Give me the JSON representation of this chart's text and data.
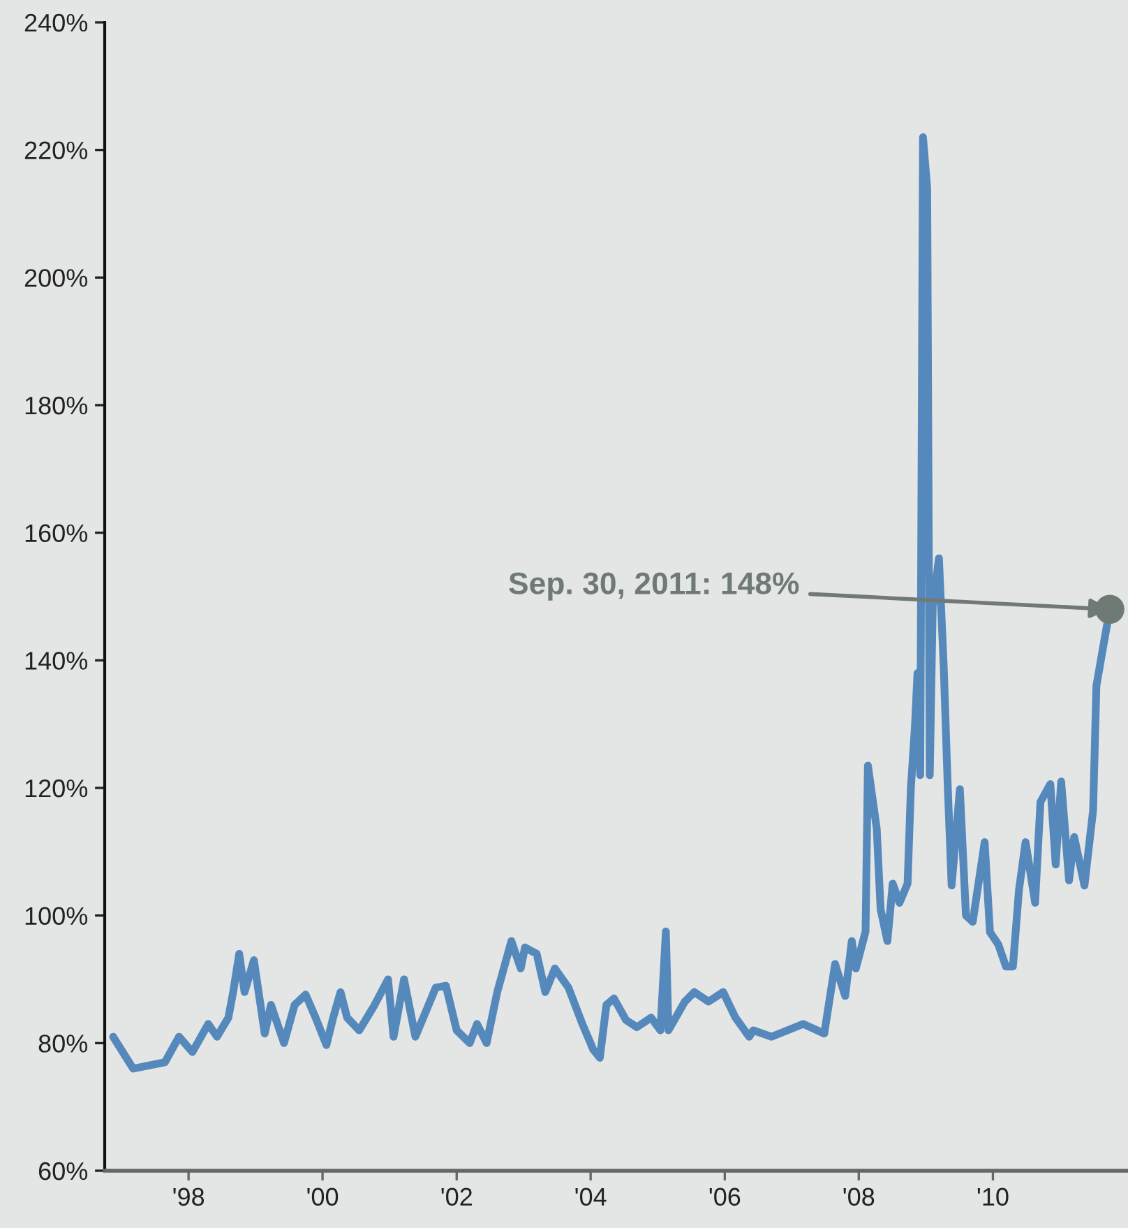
{
  "chart_data": {
    "type": "line",
    "x": [
      "1996-11-16",
      "1997-03-05",
      "1997-08-25",
      "1997-11-10",
      "1998-01-22",
      "1998-04-18",
      "1998-06-05",
      "1998-08-06",
      "1998-09-01",
      "1998-10-04",
      "1998-11-02",
      "1998-12-23",
      "1999-02-20",
      "1999-03-26",
      "1999-06-05",
      "1999-08-02",
      "1999-10-01",
      "1999-11-24",
      "2000-01-22",
      "2000-02-28",
      "2000-04-08",
      "2000-05-14",
      "2000-07-19",
      "2000-10-11",
      "2000-12-23",
      "2001-01-22",
      "2001-03-20",
      "2001-05-21",
      "2001-09-09",
      "2001-11-03",
      "2002-01-01",
      "2002-03-13",
      "2002-04-22",
      "2002-06-13",
      "2002-08-10",
      "2002-10-26",
      "2002-12-16",
      "2003-01-08",
      "2003-03-13",
      "2003-04-29",
      "2003-06-20",
      "2003-09-02",
      "2003-11-17",
      "2004-01-15",
      "2004-02-20",
      "2004-03-27",
      "2004-05-07",
      "2004-07-12",
      "2004-09-09",
      "2004-11-25",
      "2005-01-15",
      "2005-02-14",
      "2005-02-28",
      "2005-05-28",
      "2005-07-19",
      "2005-10-04",
      "2005-12-23",
      "2006-02-28",
      "2006-05-14",
      "2006-06-05",
      "2006-09-13",
      "2007-03-05",
      "2007-06-27",
      "2007-08-25",
      "2007-10-19",
      "2007-11-24",
      "2007-12-16",
      "2008-02-07",
      "2008-02-20",
      "2008-04-08",
      "2008-04-29",
      "2008-06-05",
      "2008-07-04",
      "2008-08-10",
      "2008-09-23",
      "2008-10-11",
      "2008-11-02",
      "2008-11-16",
      "2008-12-01",
      "2008-12-16",
      "2009-01-08",
      "2009-01-22",
      "2009-02-07",
      "2009-03-13",
      "2009-04-08",
      "2009-04-29",
      "2009-05-21",
      "2009-07-05",
      "2009-08-07",
      "2009-09-13",
      "2009-11-17",
      "2009-12-16",
      "2010-01-30",
      "2010-03-13",
      "2010-04-20",
      "2010-05-23",
      "2010-06-28",
      "2010-08-19",
      "2010-09-17",
      "2010-11-10",
      "2010-12-09",
      "2011-01-08",
      "2011-02-20",
      "2011-03-20",
      "2011-05-15",
      "2011-07-01",
      "2011-07-19",
      "2011-08-18",
      "2011-09-30"
    ],
    "series": [
      {
        "color": "#5689bb",
        "values": [
          81,
          76,
          77,
          81,
          78.6,
          83,
          81,
          84,
          88,
          94,
          88,
          93,
          81.5,
          86,
          80,
          86,
          87.6,
          84,
          79.7,
          84,
          88,
          84,
          82,
          86,
          90,
          81,
          90,
          81,
          88.7,
          89,
          82,
          80,
          83,
          80,
          88,
          96,
          91.7,
          95,
          94,
          88,
          91.7,
          88.7,
          83,
          79,
          77.7,
          86,
          87,
          83.6,
          82.5,
          84,
          82,
          97.5,
          82,
          86.5,
          88,
          86.5,
          88,
          84,
          81,
          82,
          81,
          83,
          81.5,
          92.4,
          87.4,
          96,
          91.7,
          97.5,
          123.5,
          113.6,
          101,
          96,
          105,
          102,
          105,
          120,
          129.6,
          138,
          122,
          222,
          214,
          122,
          148.5,
          156,
          139,
          121,
          104.7,
          119.8,
          100,
          99,
          111.5,
          97.4,
          95.5,
          92,
          92,
          104,
          111.5,
          102,
          117.8,
          120.6,
          108,
          121,
          105.5,
          112.3,
          104.7,
          116.5,
          136,
          141,
          148
        ]
      }
    ],
    "xlim": [
      "1996-10-01",
      "2012-01-01"
    ],
    "xticks": [
      {
        "value": "1998-01-01",
        "label": "'98"
      },
      {
        "value": "2000-01-01",
        "label": "'00"
      },
      {
        "value": "2002-01-01",
        "label": "'02"
      },
      {
        "value": "2004-01-01",
        "label": "'04"
      },
      {
        "value": "2006-01-01",
        "label": "'06"
      },
      {
        "value": "2008-01-01",
        "label": "'08"
      },
      {
        "value": "2010-01-01",
        "label": "'10"
      }
    ],
    "ylim": [
      60,
      240
    ],
    "yticks": [
      {
        "value": 60,
        "label": "60%"
      },
      {
        "value": 80,
        "label": "80%"
      },
      {
        "value": 100,
        "label": "100%"
      },
      {
        "value": 120,
        "label": "120%"
      },
      {
        "value": 140,
        "label": "140%"
      },
      {
        "value": 160,
        "label": "160%"
      },
      {
        "value": 180,
        "label": "180%"
      },
      {
        "value": 200,
        "label": "200%"
      },
      {
        "value": 220,
        "label": "220%"
      },
      {
        "value": 240,
        "label": "240%"
      }
    ],
    "annotations": [
      {
        "text": "Sep. 30, 2011: 148%",
        "x": "2011-09-30",
        "y": 148
      }
    ],
    "grid": false,
    "legend": false
  }
}
